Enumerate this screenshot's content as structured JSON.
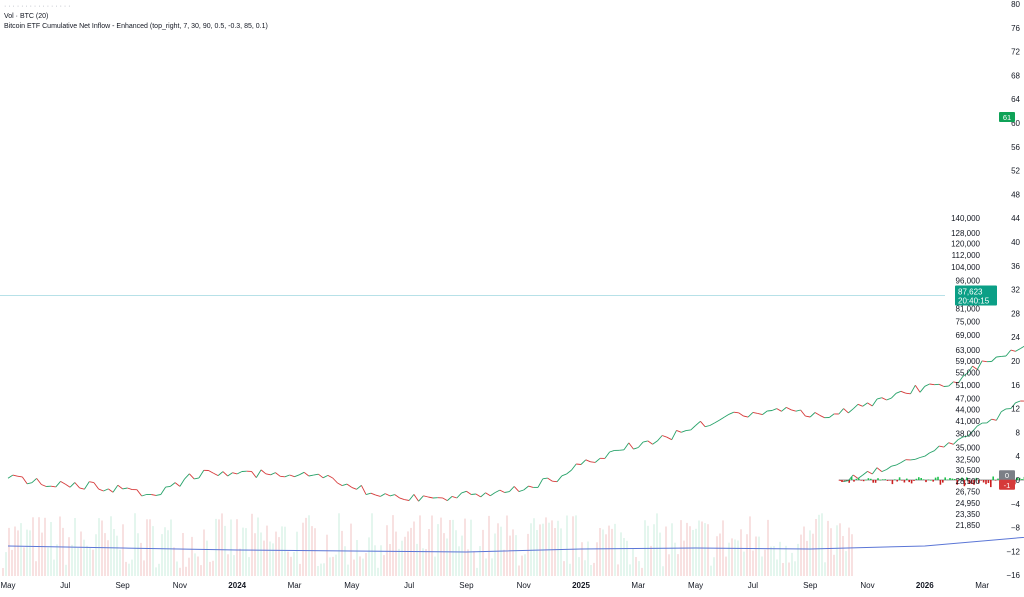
{
  "legend": {
    "line1": "Vol · BTC (20)",
    "line2": "Bitcoin ETF Cumulative Net Inflow - Enhanced (top_right, 7, 30, 90, 0.5, -0.3, 85, 0.1)"
  },
  "badges": {
    "price": "87,623",
    "countdown": "20:40:15",
    "indicator": "61",
    "zero": "0",
    "neg": "-1"
  },
  "colors": {
    "up": "#26a269",
    "down": "#d63a3a",
    "flow_up": "#1ec24e",
    "flow_down": "#cc1f1f",
    "volume_ma": "#5b76d6",
    "price_line": "#9fd7e0",
    "price_badge": "#0b9f86",
    "indicator_badge": "#0fa257"
  },
  "chart_data": {
    "type": "line",
    "x": [
      "2023-05",
      "2023-07",
      "2023-09",
      "2023-11",
      "2024-01",
      "2024-03",
      "2024-05",
      "2024-07",
      "2024-09",
      "2024-11",
      "2025-01",
      "2025-03",
      "2025-05",
      "2025-07",
      "2025-09",
      "2025-11",
      "2026-01",
      "2026-03"
    ],
    "xtick_labels": [
      "May",
      "Jul",
      "Sep",
      "Nov",
      "2024",
      "Mar",
      "May",
      "Jul",
      "Sep",
      "Nov",
      "2025",
      "Mar",
      "May",
      "Jul",
      "Sep",
      "Nov",
      "2026",
      "Mar"
    ],
    "price_ticks": [
      "140,000",
      "128,000",
      "120,000",
      "112,000",
      "104,000",
      "96,000",
      "87,623",
      "81,000",
      "75,000",
      "69,000",
      "63,000",
      "59,000",
      "55,000",
      "51,000",
      "47,000",
      "44,000",
      "41,000",
      "38,000",
      "35,000",
      "32,500",
      "30,500",
      "28,500",
      "26,750",
      "24,950",
      "23,350",
      "21,850"
    ],
    "indicator_ticks": [
      80,
      76,
      72,
      68,
      64,
      60,
      56,
      52,
      48,
      44,
      40,
      36,
      32,
      28,
      24,
      20,
      16,
      12,
      8,
      4,
      0,
      -4,
      -8,
      -12,
      -16
    ],
    "series": [
      {
        "name": "BTC",
        "values": [
          [
            0,
            29000
          ],
          [
            2,
            28000
          ],
          [
            4,
            27200
          ],
          [
            5,
            26300
          ],
          [
            7,
            30400
          ],
          [
            9,
            29800
          ],
          [
            11,
            29100
          ],
          [
            13,
            26000
          ],
          [
            15,
            25800
          ],
          [
            17,
            26600
          ],
          [
            19,
            28500
          ],
          [
            21,
            34000
          ],
          [
            23,
            37200
          ],
          [
            25,
            42000
          ],
          [
            27,
            43500
          ],
          [
            29,
            42800
          ],
          [
            31,
            48500
          ],
          [
            33,
            52000
          ],
          [
            35,
            63000
          ],
          [
            37,
            70000
          ],
          [
            39,
            66000
          ],
          [
            41,
            64500
          ],
          [
            43,
            68000
          ],
          [
            45,
            60000
          ],
          [
            47,
            58000
          ],
          [
            49,
            64000
          ],
          [
            51,
            59500
          ],
          [
            53,
            56500
          ],
          [
            55,
            60000
          ],
          [
            57,
            63500
          ],
          [
            59,
            66800
          ],
          [
            61,
            72000
          ],
          [
            63,
            90500
          ],
          [
            65,
            99000
          ],
          [
            67,
            98000
          ],
          [
            69,
            101000
          ],
          [
            71,
            97000
          ],
          [
            73,
            86000
          ],
          [
            75,
            83000
          ],
          [
            77,
            81000
          ],
          [
            79,
            86000
          ],
          [
            81,
            95000
          ],
          [
            83,
            104000
          ],
          [
            85,
            107000
          ],
          [
            87,
            109000
          ],
          [
            89,
            118000
          ],
          [
            91,
            117000
          ],
          [
            93,
            112000
          ],
          [
            95,
            113000
          ],
          [
            97,
            124000
          ],
          [
            99,
            111000
          ],
          [
            101,
            103000
          ],
          [
            103,
            101000
          ],
          [
            104,
            83000
          ],
          [
            105,
            87623
          ]
        ]
      },
      {
        "name": "Bitcoin ETF Cumulative Net Inflow - Enhanced",
        "values": [
          [
            29,
            0
          ],
          [
            31,
            2.5
          ],
          [
            33,
            6
          ],
          [
            35,
            12
          ],
          [
            37,
            18
          ],
          [
            39,
            21
          ],
          [
            41,
            23
          ],
          [
            43,
            25
          ],
          [
            45,
            26.5
          ],
          [
            47,
            28
          ],
          [
            49,
            29
          ],
          [
            51,
            31
          ],
          [
            53,
            32
          ],
          [
            55,
            33
          ],
          [
            57,
            34
          ],
          [
            59,
            35
          ],
          [
            61,
            37
          ],
          [
            63,
            42
          ],
          [
            65,
            45
          ],
          [
            67,
            48
          ],
          [
            69,
            50
          ],
          [
            71,
            53
          ],
          [
            73,
            55
          ],
          [
            75,
            52
          ],
          [
            77,
            53
          ],
          [
            79,
            52
          ],
          [
            81,
            55
          ],
          [
            83,
            60
          ],
          [
            85,
            63
          ],
          [
            87,
            66
          ],
          [
            89,
            69
          ],
          [
            91,
            70
          ],
          [
            93,
            71
          ],
          [
            95,
            74
          ],
          [
            97,
            77
          ],
          [
            99,
            76
          ],
          [
            101,
            67
          ],
          [
            103,
            62
          ],
          [
            104,
            61
          ]
        ]
      },
      {
        "name": "Daily net flow",
        "values": [
          [
            29,
            0.2
          ],
          [
            35,
            0.9
          ],
          [
            41,
            -0.9
          ],
          [
            47,
            0.5
          ],
          [
            53,
            -3.3
          ],
          [
            59,
            0.8
          ],
          [
            63,
            3.6
          ],
          [
            65,
            -2.2
          ],
          [
            69,
            2.3
          ],
          [
            73,
            -4.8
          ],
          [
            75,
            -4.2
          ],
          [
            79,
            -2.1
          ],
          [
            83,
            4.1
          ],
          [
            85,
            -3.6
          ],
          [
            87,
            2.8
          ],
          [
            91,
            -3.2
          ],
          [
            95,
            4.5
          ],
          [
            97,
            -2.7
          ],
          [
            99,
            3.5
          ],
          [
            101,
            -5.0
          ],
          [
            103,
            -3.8
          ],
          [
            104,
            -4.5
          ]
        ]
      },
      {
        "name": "Vol · BTC (20)",
        "values": [
          [
            0,
            30
          ],
          [
            4,
            28
          ],
          [
            8,
            26
          ],
          [
            12,
            25
          ],
          [
            16,
            24
          ],
          [
            20,
            27
          ],
          [
            24,
            28
          ],
          [
            28,
            27
          ],
          [
            32,
            30
          ],
          [
            36,
            40
          ],
          [
            40,
            30
          ],
          [
            44,
            26
          ],
          [
            48,
            22
          ],
          [
            52,
            25
          ],
          [
            56,
            27
          ],
          [
            60,
            28
          ],
          [
            62,
            48
          ],
          [
            64,
            58
          ],
          [
            66,
            40
          ],
          [
            70,
            32
          ],
          [
            74,
            37
          ],
          [
            78,
            26
          ],
          [
            80,
            30
          ],
          [
            84,
            25
          ],
          [
            88,
            16
          ],
          [
            92,
            22
          ],
          [
            96,
            26
          ],
          [
            100,
            33
          ],
          [
            102,
            30
          ],
          [
            104,
            42
          ]
        ]
      }
    ],
    "ylim": [
      21850,
      140000
    ],
    "indicator_ylim": [
      -16,
      80
    ],
    "xlabel": "",
    "ylabel": ""
  }
}
